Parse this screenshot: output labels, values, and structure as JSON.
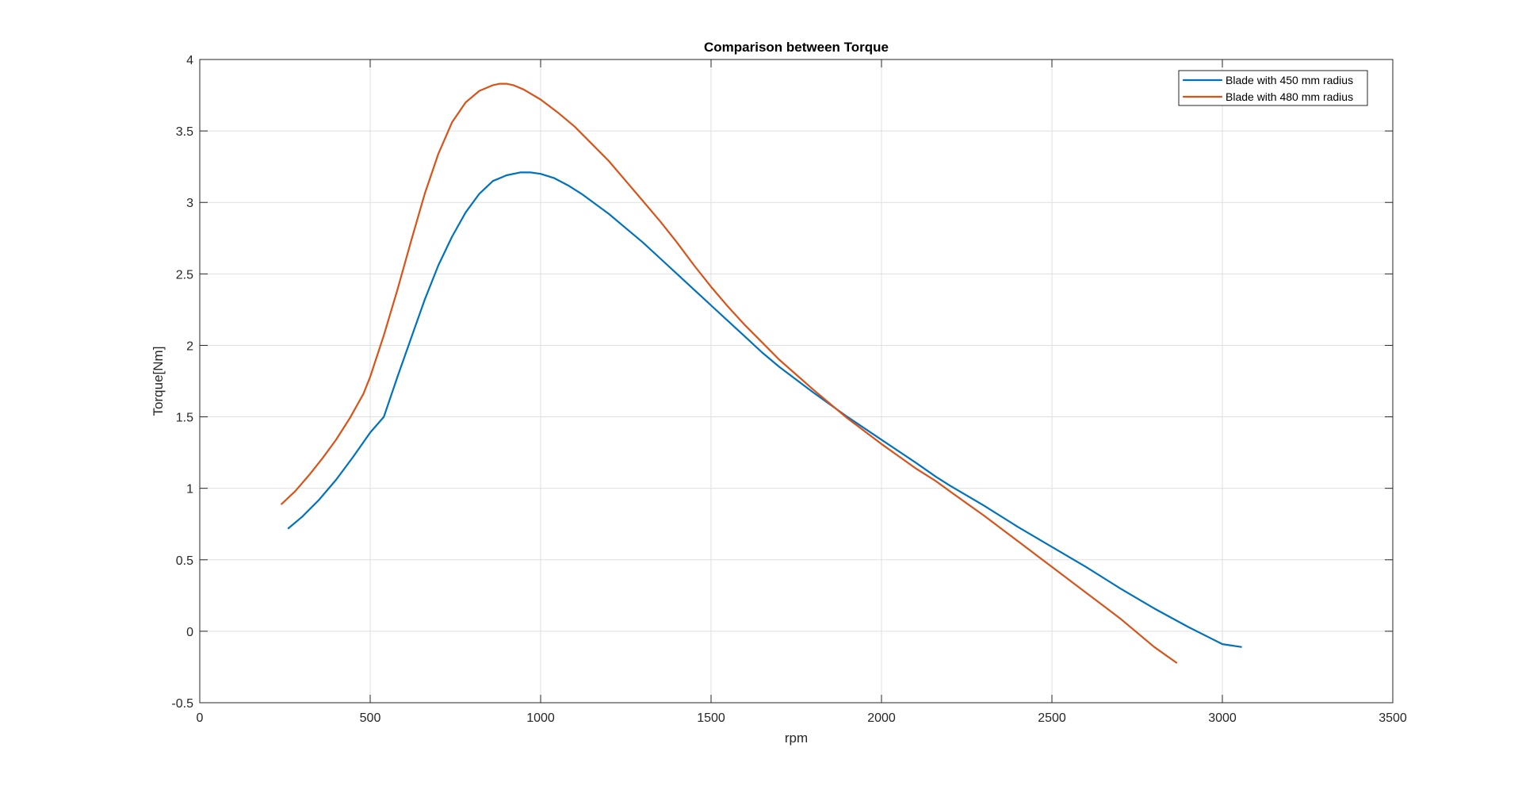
{
  "window": {
    "background": "#ffffff"
  },
  "chart_data": {
    "type": "line",
    "title": "Comparison between Torque",
    "xlabel": "rpm",
    "ylabel": "Torque[Nm]",
    "xlim": [
      0,
      3500
    ],
    "ylim": [
      -0.5,
      4
    ],
    "xticks": [
      0,
      500,
      1000,
      1500,
      2000,
      2500,
      3000,
      3500
    ],
    "xtick_labels": [
      "0",
      "500",
      "1000",
      "1500",
      "2000",
      "2500",
      "3000",
      "3500"
    ],
    "yticks": [
      -0.5,
      0,
      0.5,
      1,
      1.5,
      2,
      2.5,
      3,
      3.5,
      4
    ],
    "ytick_labels": [
      "-0.5",
      "0",
      "0.5",
      "1",
      "1.5",
      "2",
      "2.5",
      "3",
      "3.5",
      "4"
    ],
    "grid": true,
    "legend_position": "top-right",
    "series": [
      {
        "name": "Blade with 450 mm radius",
        "color": "#0072BD",
        "x": [
          260,
          300,
          350,
          400,
          450,
          500,
          540,
          580,
          620,
          660,
          700,
          740,
          780,
          820,
          860,
          900,
          940,
          970,
          1000,
          1040,
          1080,
          1120,
          1160,
          1200,
          1250,
          1300,
          1350,
          1400,
          1450,
          1500,
          1550,
          1600,
          1650,
          1700,
          1800,
          1900,
          2000,
          2100,
          2160,
          2200,
          2300,
          2400,
          2500,
          2600,
          2700,
          2800,
          2900,
          3000,
          3055
        ],
        "y": [
          0.72,
          0.8,
          0.92,
          1.06,
          1.22,
          1.39,
          1.5,
          1.78,
          2.05,
          2.32,
          2.56,
          2.76,
          2.93,
          3.06,
          3.15,
          3.19,
          3.21,
          3.21,
          3.2,
          3.17,
          3.12,
          3.06,
          2.99,
          2.92,
          2.82,
          2.72,
          2.61,
          2.5,
          2.39,
          2.28,
          2.17,
          2.06,
          1.95,
          1.85,
          1.67,
          1.5,
          1.34,
          1.18,
          1.08,
          1.02,
          0.88,
          0.73,
          0.59,
          0.45,
          0.3,
          0.16,
          0.03,
          -0.09,
          -0.11
        ]
      },
      {
        "name": "Blade with 480 mm radius",
        "color": "#D95319",
        "x": [
          240,
          280,
          320,
          360,
          400,
          440,
          480,
          500,
          540,
          580,
          620,
          660,
          700,
          740,
          780,
          820,
          860,
          880,
          900,
          920,
          950,
          1000,
          1050,
          1100,
          1150,
          1200,
          1250,
          1300,
          1350,
          1400,
          1450,
          1500,
          1550,
          1600,
          1650,
          1700,
          1800,
          1900,
          2000,
          2100,
          2160,
          2200,
          2300,
          2400,
          2500,
          2600,
          2700,
          2800,
          2865
        ],
        "y": [
          0.89,
          0.98,
          1.09,
          1.21,
          1.34,
          1.49,
          1.66,
          1.78,
          2.07,
          2.39,
          2.73,
          3.06,
          3.34,
          3.56,
          3.7,
          3.78,
          3.82,
          3.83,
          3.83,
          3.82,
          3.79,
          3.72,
          3.63,
          3.53,
          3.41,
          3.29,
          3.15,
          3.01,
          2.87,
          2.72,
          2.56,
          2.41,
          2.27,
          2.14,
          2.02,
          1.9,
          1.69,
          1.49,
          1.31,
          1.14,
          1.05,
          0.98,
          0.81,
          0.63,
          0.45,
          0.27,
          0.09,
          -0.11,
          -0.22
        ]
      }
    ]
  }
}
